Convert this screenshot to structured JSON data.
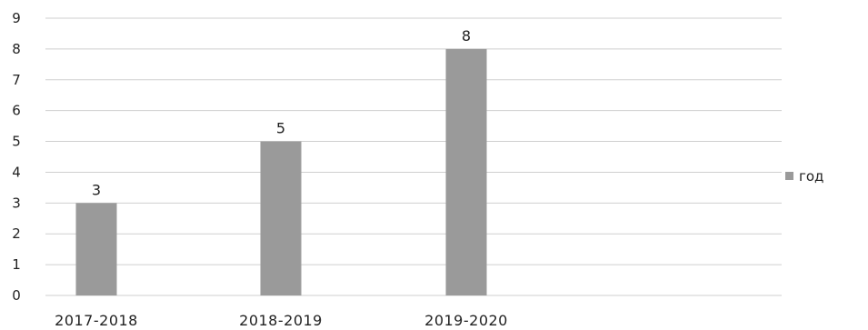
{
  "chart_data": {
    "type": "bar",
    "title": "",
    "xlabel": "",
    "ylabel": "",
    "categories": [
      "2017-2018",
      "2018-2019",
      "2019-2020"
    ],
    "series": [
      {
        "name": "год",
        "values": [
          3,
          5,
          8
        ]
      }
    ],
    "data_labels": [
      "3",
      "5",
      "8"
    ],
    "ylim": [
      0,
      9
    ],
    "yticks": [
      "0",
      "1",
      "2",
      "3",
      "4",
      "5",
      "6",
      "7",
      "8",
      "9"
    ],
    "grid": true,
    "legend": {
      "position": "right",
      "entries": [
        "год"
      ]
    },
    "colors": {
      "bar": "#9a9a9a",
      "grid": "#cfcfcf"
    }
  }
}
